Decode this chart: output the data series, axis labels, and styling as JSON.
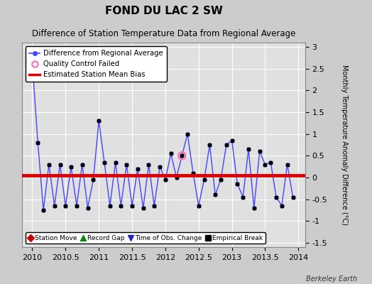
{
  "title": "FOND DU LAC 2 SW",
  "subtitle": "Difference of Station Temperature Data from Regional Average",
  "ylabel": "Monthly Temperature Anomaly Difference (°C)",
  "xlabel_ticks": [
    2010,
    2010.5,
    2011,
    2011.5,
    2012,
    2012.5,
    2013,
    2013.5,
    2014
  ],
  "xlim": [
    2009.85,
    2014.1
  ],
  "ylim": [
    -1.6,
    3.1
  ],
  "yticks": [
    -1.5,
    -1.0,
    -0.5,
    0.0,
    0.5,
    1.0,
    1.5,
    2.0,
    2.5,
    3.0
  ],
  "ytick_labels": [
    "-1.5",
    "-1",
    "-0.5",
    "0",
    "0.5",
    "1",
    "1.5",
    "2",
    "2.5",
    "3"
  ],
  "mean_bias": 0.05,
  "line_color": "#4444ff",
  "marker_color": "#000000",
  "bias_color": "#dd0000",
  "background_color": "#e0e0e0",
  "grid_color": "#ffffff",
  "qc_failed_x": 2012.25,
  "qc_failed_y": 0.5,
  "times": [
    2010.0,
    2010.083,
    2010.167,
    2010.25,
    2010.333,
    2010.417,
    2010.5,
    2010.583,
    2010.667,
    2010.75,
    2010.833,
    2010.917,
    2011.0,
    2011.083,
    2011.167,
    2011.25,
    2011.333,
    2011.417,
    2011.5,
    2011.583,
    2011.667,
    2011.75,
    2011.833,
    2011.917,
    2012.0,
    2012.083,
    2012.167,
    2012.25,
    2012.333,
    2012.417,
    2012.5,
    2012.583,
    2012.667,
    2012.75,
    2012.833,
    2012.917,
    2013.0,
    2013.083,
    2013.167,
    2013.25,
    2013.333,
    2013.417,
    2013.5,
    2013.583,
    2013.667,
    2013.75,
    2013.833,
    2013.917
  ],
  "values": [
    2.65,
    0.8,
    -0.75,
    0.3,
    -0.65,
    0.3,
    -0.65,
    0.25,
    -0.65,
    0.3,
    -0.7,
    -0.05,
    1.3,
    0.35,
    -0.65,
    0.35,
    -0.65,
    0.3,
    -0.65,
    0.2,
    -0.7,
    0.3,
    -0.65,
    0.25,
    -0.05,
    0.55,
    0.0,
    0.5,
    1.0,
    0.1,
    -0.65,
    -0.05,
    0.75,
    -0.4,
    -0.05,
    0.75,
    0.85,
    -0.15,
    -0.45,
    0.65,
    -0.7,
    0.6,
    0.3,
    0.35,
    -0.45,
    -0.65,
    0.3,
    -0.45
  ],
  "bottom_legend_items": [
    {
      "label": "Station Move",
      "color": "#cc0000",
      "marker": "D"
    },
    {
      "label": "Record Gap",
      "color": "#008800",
      "marker": "^"
    },
    {
      "label": "Time of Obs. Change",
      "color": "#2222cc",
      "marker": "v"
    },
    {
      "label": "Empirical Break",
      "color": "#000000",
      "marker": "s"
    }
  ],
  "watermark": "Berkeley Earth",
  "fig_width": 5.24,
  "fig_height": 4.0,
  "dpi": 100
}
